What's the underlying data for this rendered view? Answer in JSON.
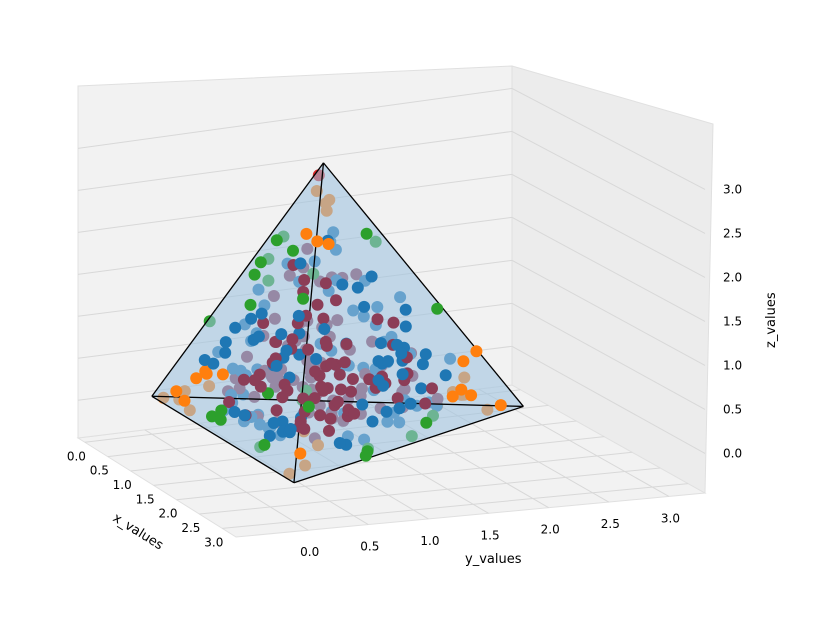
{
  "chart_data": {
    "type": "scatter-3d",
    "title": "",
    "xlabel": "x_values",
    "ylabel": "y_values",
    "zlabel": "z_values",
    "xlim": [
      -0.15,
      3.3
    ],
    "ylim": [
      -0.6,
      3.3
    ],
    "zlim": [
      -0.45,
      3.45
    ],
    "x_ticks": [
      "0.0",
      "0.5",
      "1.0",
      "1.5",
      "2.0",
      "2.5",
      "3.0"
    ],
    "y_ticks": [
      "0.0",
      "0.5",
      "1.0",
      "1.5",
      "2.0",
      "2.5",
      "3.0"
    ],
    "z_ticks": [
      "0.0",
      "0.5",
      "1.0",
      "1.5",
      "2.0",
      "2.5",
      "3.0"
    ],
    "grid": true,
    "colors": {
      "face_region": "#1f77b4",
      "vertex_region": "#ff7f0e",
      "edge_region": "#2ca02c",
      "top_vertex": "#d62728",
      "interior": "#8c3d57",
      "tetrahedron_face": "#9ec3e0",
      "tetrahedron_edge": "#000000",
      "pane": "#f2f2f2",
      "gridline": "#d8d8d8"
    },
    "tetrahedron_vertices": [
      {
        "x": 0.0,
        "y": 0.0,
        "z": 0.0
      },
      {
        "x": 3.0,
        "y": 0.0,
        "z": 0.0
      },
      {
        "x": 1.5,
        "y": 2.6,
        "z": 0.0
      },
      {
        "x": 1.5,
        "y": 0.87,
        "z": 3.1
      }
    ],
    "series": [
      {
        "color": "#1f77b4",
        "points": []
      },
      {
        "color": "#ff7f0e",
        "points": []
      },
      {
        "color": "#2ca02c",
        "points": []
      },
      {
        "color": "#8c3d57",
        "points": []
      },
      {
        "color": "#d62728",
        "points": []
      }
    ],
    "rendered_points_px": null
  }
}
